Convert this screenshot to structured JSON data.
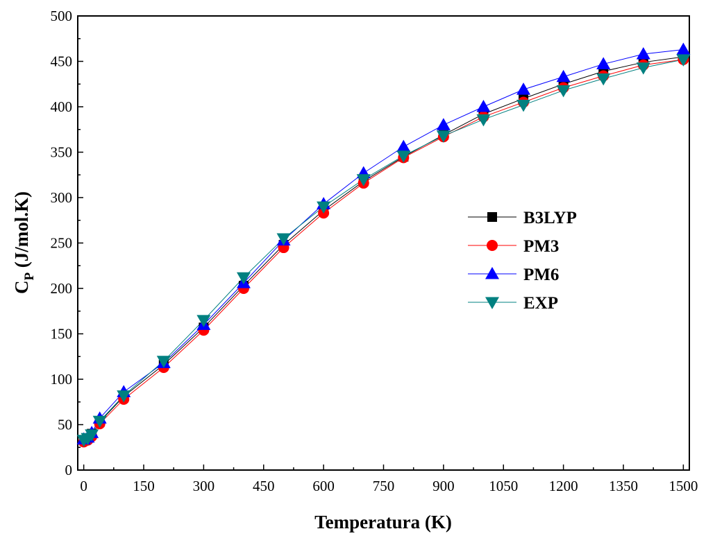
{
  "chart_data": {
    "type": "line",
    "xlabel": "Temperatura (K)",
    "ylabel_main": "C",
    "ylabel_sub": "P",
    "ylabel_rest": " (J/mol.K)",
    "xlim": [
      -15,
      1515
    ],
    "ylim": [
      0,
      500
    ],
    "xticks": [
      0,
      150,
      300,
      450,
      600,
      750,
      900,
      1050,
      1200,
      1350,
      1500
    ],
    "yticks": [
      0,
      50,
      100,
      150,
      200,
      250,
      300,
      350,
      400,
      450,
      500
    ],
    "grid": false,
    "legend_position": "right-middle",
    "x": [
      0,
      10,
      20,
      40,
      100,
      200,
      300,
      400,
      500,
      600,
      700,
      800,
      900,
      1000,
      1100,
      1200,
      1300,
      1400,
      1500
    ],
    "series": [
      {
        "name": "B3LYP",
        "color": "#000000",
        "marker": "square",
        "values": [
          33,
          35,
          40,
          53,
          81,
          116,
          157,
          203,
          248,
          286,
          318,
          345,
          369,
          392,
          409,
          425,
          439,
          449,
          455
        ]
      },
      {
        "name": "PM3",
        "color": "#ff0000",
        "marker": "circle",
        "values": [
          31,
          33,
          37,
          51,
          78,
          113,
          154,
          200,
          245,
          283,
          316,
          344,
          367,
          389,
          405,
          421,
          434,
          446,
          452
        ]
      },
      {
        "name": "PM6",
        "color": "#0000ff",
        "marker": "triangle-up",
        "values": [
          34,
          36,
          41,
          57,
          86,
          118,
          160,
          206,
          253,
          293,
          327,
          356,
          380,
          400,
          419,
          433,
          447,
          458,
          463
        ]
      },
      {
        "name": "EXP",
        "color": "#008080",
        "marker": "triangle-down",
        "values": [
          33,
          35,
          39,
          54,
          82,
          120,
          165,
          212,
          255,
          290,
          320,
          346,
          368,
          386,
          402,
          418,
          431,
          443,
          452
        ]
      }
    ]
  }
}
